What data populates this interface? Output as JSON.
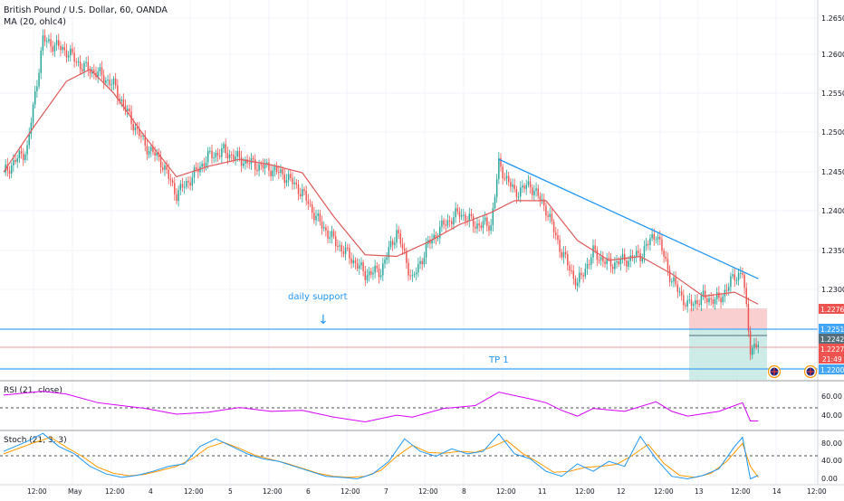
{
  "header": {
    "symbol_title": "British Pound / U.S. Dollar, 60, OANDA",
    "indicator": "MA (20, ohlc4)"
  },
  "colors": {
    "up": "#26a69a",
    "down": "#ef5350",
    "ma": "#e05a5a",
    "trendline": "#2196f3",
    "zone_line": "#42a5f5",
    "stop_zone": "#f8c7c7",
    "target_zone": "#c4e8e3",
    "rsi": "#d500f9",
    "stoch_k": "#2196f3",
    "stoch_d": "#ff9800"
  },
  "annotations": {
    "support_label": "daily support",
    "tp_label": "TP 1"
  },
  "price_badges": {
    "stop": "1.22760",
    "entry": "1.22510",
    "mid": "1.22420",
    "last": "1.22278",
    "countdown": "21:49",
    "target": "1.22000"
  },
  "panes": {
    "rsi_label": "RSI (21, close)",
    "stoch_label": "Stoch (21, 3, 3)"
  },
  "chart_data": {
    "type": "candlestick",
    "x_ticks": [
      "12:00",
      "May",
      "12:00",
      "4",
      "12:00",
      "5",
      "12:00",
      "6",
      "12:00",
      "7",
      "12:00",
      "8",
      "12:00",
      "11",
      "12:00",
      "12",
      "12:00",
      "13",
      "12:00",
      "14",
      "12:00"
    ],
    "price_axis": {
      "ylim": [
        1.2185,
        1.2662
      ],
      "ticks": [
        "1.26500",
        "1.26000",
        "1.25500",
        "1.25000",
        "1.24500",
        "1.24000",
        "1.23500",
        "1.23000"
      ]
    },
    "close_path": [
      [
        0,
        1.2445
      ],
      [
        3,
        1.2475
      ],
      [
        5,
        1.2612
      ],
      [
        8,
        1.2598
      ],
      [
        10,
        1.2578
      ],
      [
        12,
        1.257
      ],
      [
        14,
        1.2555
      ],
      [
        16,
        1.2515
      ],
      [
        18,
        1.248
      ],
      [
        20,
        1.246
      ],
      [
        22,
        1.2418
      ],
      [
        24,
        1.244
      ],
      [
        26,
        1.2465
      ],
      [
        28,
        1.2472
      ],
      [
        30,
        1.2462
      ],
      [
        32,
        1.2455
      ],
      [
        34,
        1.245
      ],
      [
        36,
        1.244
      ],
      [
        38,
        1.242
      ],
      [
        40,
        1.2385
      ],
      [
        42,
        1.236
      ],
      [
        44,
        1.234
      ],
      [
        46,
        1.2318
      ],
      [
        48,
        1.2322
      ],
      [
        50,
        1.2372
      ],
      [
        52,
        1.231
      ],
      [
        54,
        1.2355
      ],
      [
        56,
        1.238
      ],
      [
        58,
        1.2395
      ],
      [
        60,
        1.238
      ],
      [
        62,
        1.238
      ],
      [
        63,
        1.2455
      ],
      [
        65,
        1.242
      ],
      [
        67,
        1.243
      ],
      [
        69,
        1.24
      ],
      [
        71,
        1.2345
      ],
      [
        73,
        1.2305
      ],
      [
        75,
        1.2345
      ],
      [
        77,
        1.233
      ],
      [
        79,
        1.2335
      ],
      [
        81,
        1.2342
      ],
      [
        83,
        1.237
      ],
      [
        85,
        1.231
      ],
      [
        87,
        1.2278
      ],
      [
        89,
        1.2288
      ],
      [
        91,
        1.2285
      ],
      [
        93,
        1.2315
      ],
      [
        94,
        1.232
      ],
      [
        95,
        1.2225
      ],
      [
        96,
        1.2228
      ]
    ],
    "ma_path": [
      [
        0,
        1.2446
      ],
      [
        4,
        1.2505
      ],
      [
        8,
        1.256
      ],
      [
        11,
        1.2575
      ],
      [
        14,
        1.2545
      ],
      [
        18,
        1.249
      ],
      [
        22,
        1.244
      ],
      [
        26,
        1.2453
      ],
      [
        30,
        1.2462
      ],
      [
        34,
        1.2455
      ],
      [
        38,
        1.2445
      ],
      [
        42,
        1.239
      ],
      [
        46,
        1.2342
      ],
      [
        50,
        1.234
      ],
      [
        54,
        1.2358
      ],
      [
        58,
        1.238
      ],
      [
        62,
        1.2395
      ],
      [
        65,
        1.241
      ],
      [
        69,
        1.241
      ],
      [
        73,
        1.236
      ],
      [
        77,
        1.2335
      ],
      [
        81,
        1.234
      ],
      [
        85,
        1.2318
      ],
      [
        89,
        1.229
      ],
      [
        93,
        1.2295
      ],
      [
        96,
        1.228
      ]
    ],
    "trendline": [
      [
        63,
        1.2462
      ],
      [
        96,
        1.2312
      ]
    ],
    "support_line": 1.2251,
    "target_line": 1.22,
    "position": {
      "entry": 1.2251,
      "stop": 1.2276,
      "target": 1.22,
      "last": 1.22278
    },
    "rsi": {
      "ylim": [
        30,
        80
      ],
      "ticks": [
        "60.00",
        "40.00"
      ],
      "dashed_levels": [
        50
      ],
      "path": [
        [
          0,
          66
        ],
        [
          5,
          70
        ],
        [
          8,
          67
        ],
        [
          12,
          58
        ],
        [
          18,
          52
        ],
        [
          22,
          46
        ],
        [
          26,
          48
        ],
        [
          30,
          53
        ],
        [
          34,
          49
        ],
        [
          38,
          50
        ],
        [
          42,
          43
        ],
        [
          46,
          38
        ],
        [
          50,
          45
        ],
        [
          52,
          43
        ],
        [
          56,
          52
        ],
        [
          60,
          55
        ],
        [
          63,
          69
        ],
        [
          67,
          62
        ],
        [
          69,
          58
        ],
        [
          71,
          50
        ],
        [
          73,
          44
        ],
        [
          75,
          52
        ],
        [
          79,
          49
        ],
        [
          83,
          59
        ],
        [
          85,
          49
        ],
        [
          87,
          44
        ],
        [
          91,
          49
        ],
        [
          93,
          55
        ],
        [
          94,
          58
        ],
        [
          95,
          39
        ],
        [
          96,
          39
        ]
      ]
    },
    "stoch": {
      "ylim": [
        -5,
        100
      ],
      "ticks": [
        "80.00",
        "40.00",
        "0.00"
      ],
      "dashed_levels": [
        50
      ],
      "k_path": [
        [
          0,
          60
        ],
        [
          3,
          80
        ],
        [
          5,
          96
        ],
        [
          7,
          70
        ],
        [
          9,
          55
        ],
        [
          11,
          30
        ],
        [
          13,
          15
        ],
        [
          15,
          8
        ],
        [
          17,
          12
        ],
        [
          19,
          20
        ],
        [
          21,
          30
        ],
        [
          23,
          35
        ],
        [
          25,
          70
        ],
        [
          27,
          85
        ],
        [
          29,
          70
        ],
        [
          31,
          55
        ],
        [
          33,
          45
        ],
        [
          35,
          40
        ],
        [
          37,
          30
        ],
        [
          39,
          20
        ],
        [
          41,
          10
        ],
        [
          43,
          8
        ],
        [
          45,
          5
        ],
        [
          47,
          15
        ],
        [
          49,
          40
        ],
        [
          51,
          85
        ],
        [
          53,
          60
        ],
        [
          55,
          50
        ],
        [
          57,
          65
        ],
        [
          59,
          55
        ],
        [
          61,
          60
        ],
        [
          63,
          95
        ],
        [
          65,
          55
        ],
        [
          67,
          45
        ],
        [
          69,
          20
        ],
        [
          71,
          10
        ],
        [
          73,
          35
        ],
        [
          75,
          20
        ],
        [
          77,
          40
        ],
        [
          79,
          30
        ],
        [
          81,
          90
        ],
        [
          83,
          45
        ],
        [
          85,
          10
        ],
        [
          87,
          5
        ],
        [
          89,
          12
        ],
        [
          91,
          25
        ],
        [
          93,
          70
        ],
        [
          94,
          88
        ],
        [
          95,
          5
        ],
        [
          96,
          12
        ]
      ],
      "d_path": [
        [
          0,
          55
        ],
        [
          4,
          78
        ],
        [
          6,
          88
        ],
        [
          8,
          68
        ],
        [
          10,
          50
        ],
        [
          12,
          28
        ],
        [
          14,
          16
        ],
        [
          16,
          11
        ],
        [
          18,
          14
        ],
        [
          20,
          22
        ],
        [
          22,
          30
        ],
        [
          24,
          45
        ],
        [
          26,
          68
        ],
        [
          28,
          78
        ],
        [
          30,
          66
        ],
        [
          32,
          52
        ],
        [
          34,
          44
        ],
        [
          36,
          36
        ],
        [
          38,
          26
        ],
        [
          40,
          16
        ],
        [
          42,
          10
        ],
        [
          44,
          8
        ],
        [
          46,
          10
        ],
        [
          48,
          22
        ],
        [
          50,
          50
        ],
        [
          52,
          72
        ],
        [
          54,
          58
        ],
        [
          56,
          56
        ],
        [
          58,
          60
        ],
        [
          60,
          58
        ],
        [
          62,
          68
        ],
        [
          64,
          82
        ],
        [
          66,
          56
        ],
        [
          68,
          38
        ],
        [
          70,
          18
        ],
        [
          72,
          20
        ],
        [
          74,
          28
        ],
        [
          76,
          30
        ],
        [
          78,
          34
        ],
        [
          80,
          52
        ],
        [
          82,
          74
        ],
        [
          84,
          36
        ],
        [
          86,
          12
        ],
        [
          88,
          8
        ],
        [
          90,
          16
        ],
        [
          92,
          40
        ],
        [
          94,
          76
        ],
        [
          95,
          30
        ],
        [
          96,
          8
        ]
      ]
    }
  }
}
